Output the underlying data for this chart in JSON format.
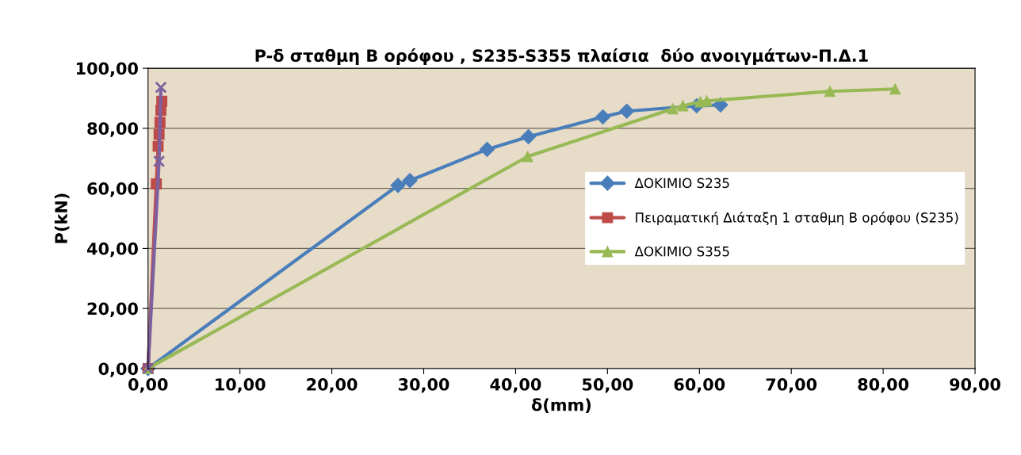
{
  "chart_data": {
    "type": "line",
    "title": "P-δ σταθμη Β ορόφου , S235-S355 πλαίσια  δύο ανοιγμάτων-Π.Δ.1",
    "xlabel": "δ(mm)",
    "ylabel": "P(kN)",
    "xlim": [
      0,
      90
    ],
    "ylim": [
      0,
      100
    ],
    "xticks": [
      {
        "value": 0,
        "label": "0,00"
      },
      {
        "value": 10,
        "label": "10,00"
      },
      {
        "value": 20,
        "label": "20,00"
      },
      {
        "value": 30,
        "label": "30,00"
      },
      {
        "value": 40,
        "label": "40,00"
      },
      {
        "value": 50,
        "label": "50,00"
      },
      {
        "value": 60,
        "label": "60,00"
      },
      {
        "value": 70,
        "label": "70,00"
      },
      {
        "value": 80,
        "label": "80,00"
      },
      {
        "value": 90,
        "label": "90,00"
      }
    ],
    "yticks": [
      {
        "value": 0,
        "label": "0,00"
      },
      {
        "value": 20,
        "label": "20,00"
      },
      {
        "value": 40,
        "label": "40,00"
      },
      {
        "value": 60,
        "label": "60,00"
      },
      {
        "value": 80,
        "label": "80,00"
      },
      {
        "value": 100,
        "label": "100,00"
      }
    ],
    "grid": "y",
    "legend": "right",
    "line_style": "solid",
    "series": [
      {
        "name": "ΔΟΚΙΜΙΟ S235",
        "color": "#4a7ebb",
        "marker": "diamond",
        "x": [
          0,
          27.2,
          28.5,
          36.9,
          41.4,
          49.5,
          52.1,
          59.7,
          62.3
        ],
        "values": [
          0,
          61,
          62.6,
          73,
          77.2,
          83.8,
          85.7,
          87.5,
          87.8
        ]
      },
      {
        "name": "Πειραματική Διάταξη 1 σταθμη Β ορόφου (S235)",
        "color": "#be4b48",
        "marker": "square",
        "x": [
          0,
          0.9,
          1.1,
          1.2,
          1.3,
          1.4,
          1.5
        ],
        "values": [
          0,
          61.5,
          74,
          78,
          82,
          86,
          89
        ]
      },
      {
        "name": "ΔΟΚΙΜΙΟ S355",
        "color": "#98b954",
        "marker": "triangle",
        "x": [
          0,
          41.3,
          57.1,
          58.2,
          60.1,
          60.8,
          74.2,
          81.3
        ],
        "values": [
          0,
          70.6,
          86.5,
          87.5,
          88.8,
          89.1,
          92.3,
          93.1
        ]
      },
      {
        "color": "#7d60a0",
        "marker": "cross",
        "x": [
          0,
          1.2,
          1.4
        ],
        "values": [
          0,
          69,
          93.6
        ]
      }
    ]
  }
}
